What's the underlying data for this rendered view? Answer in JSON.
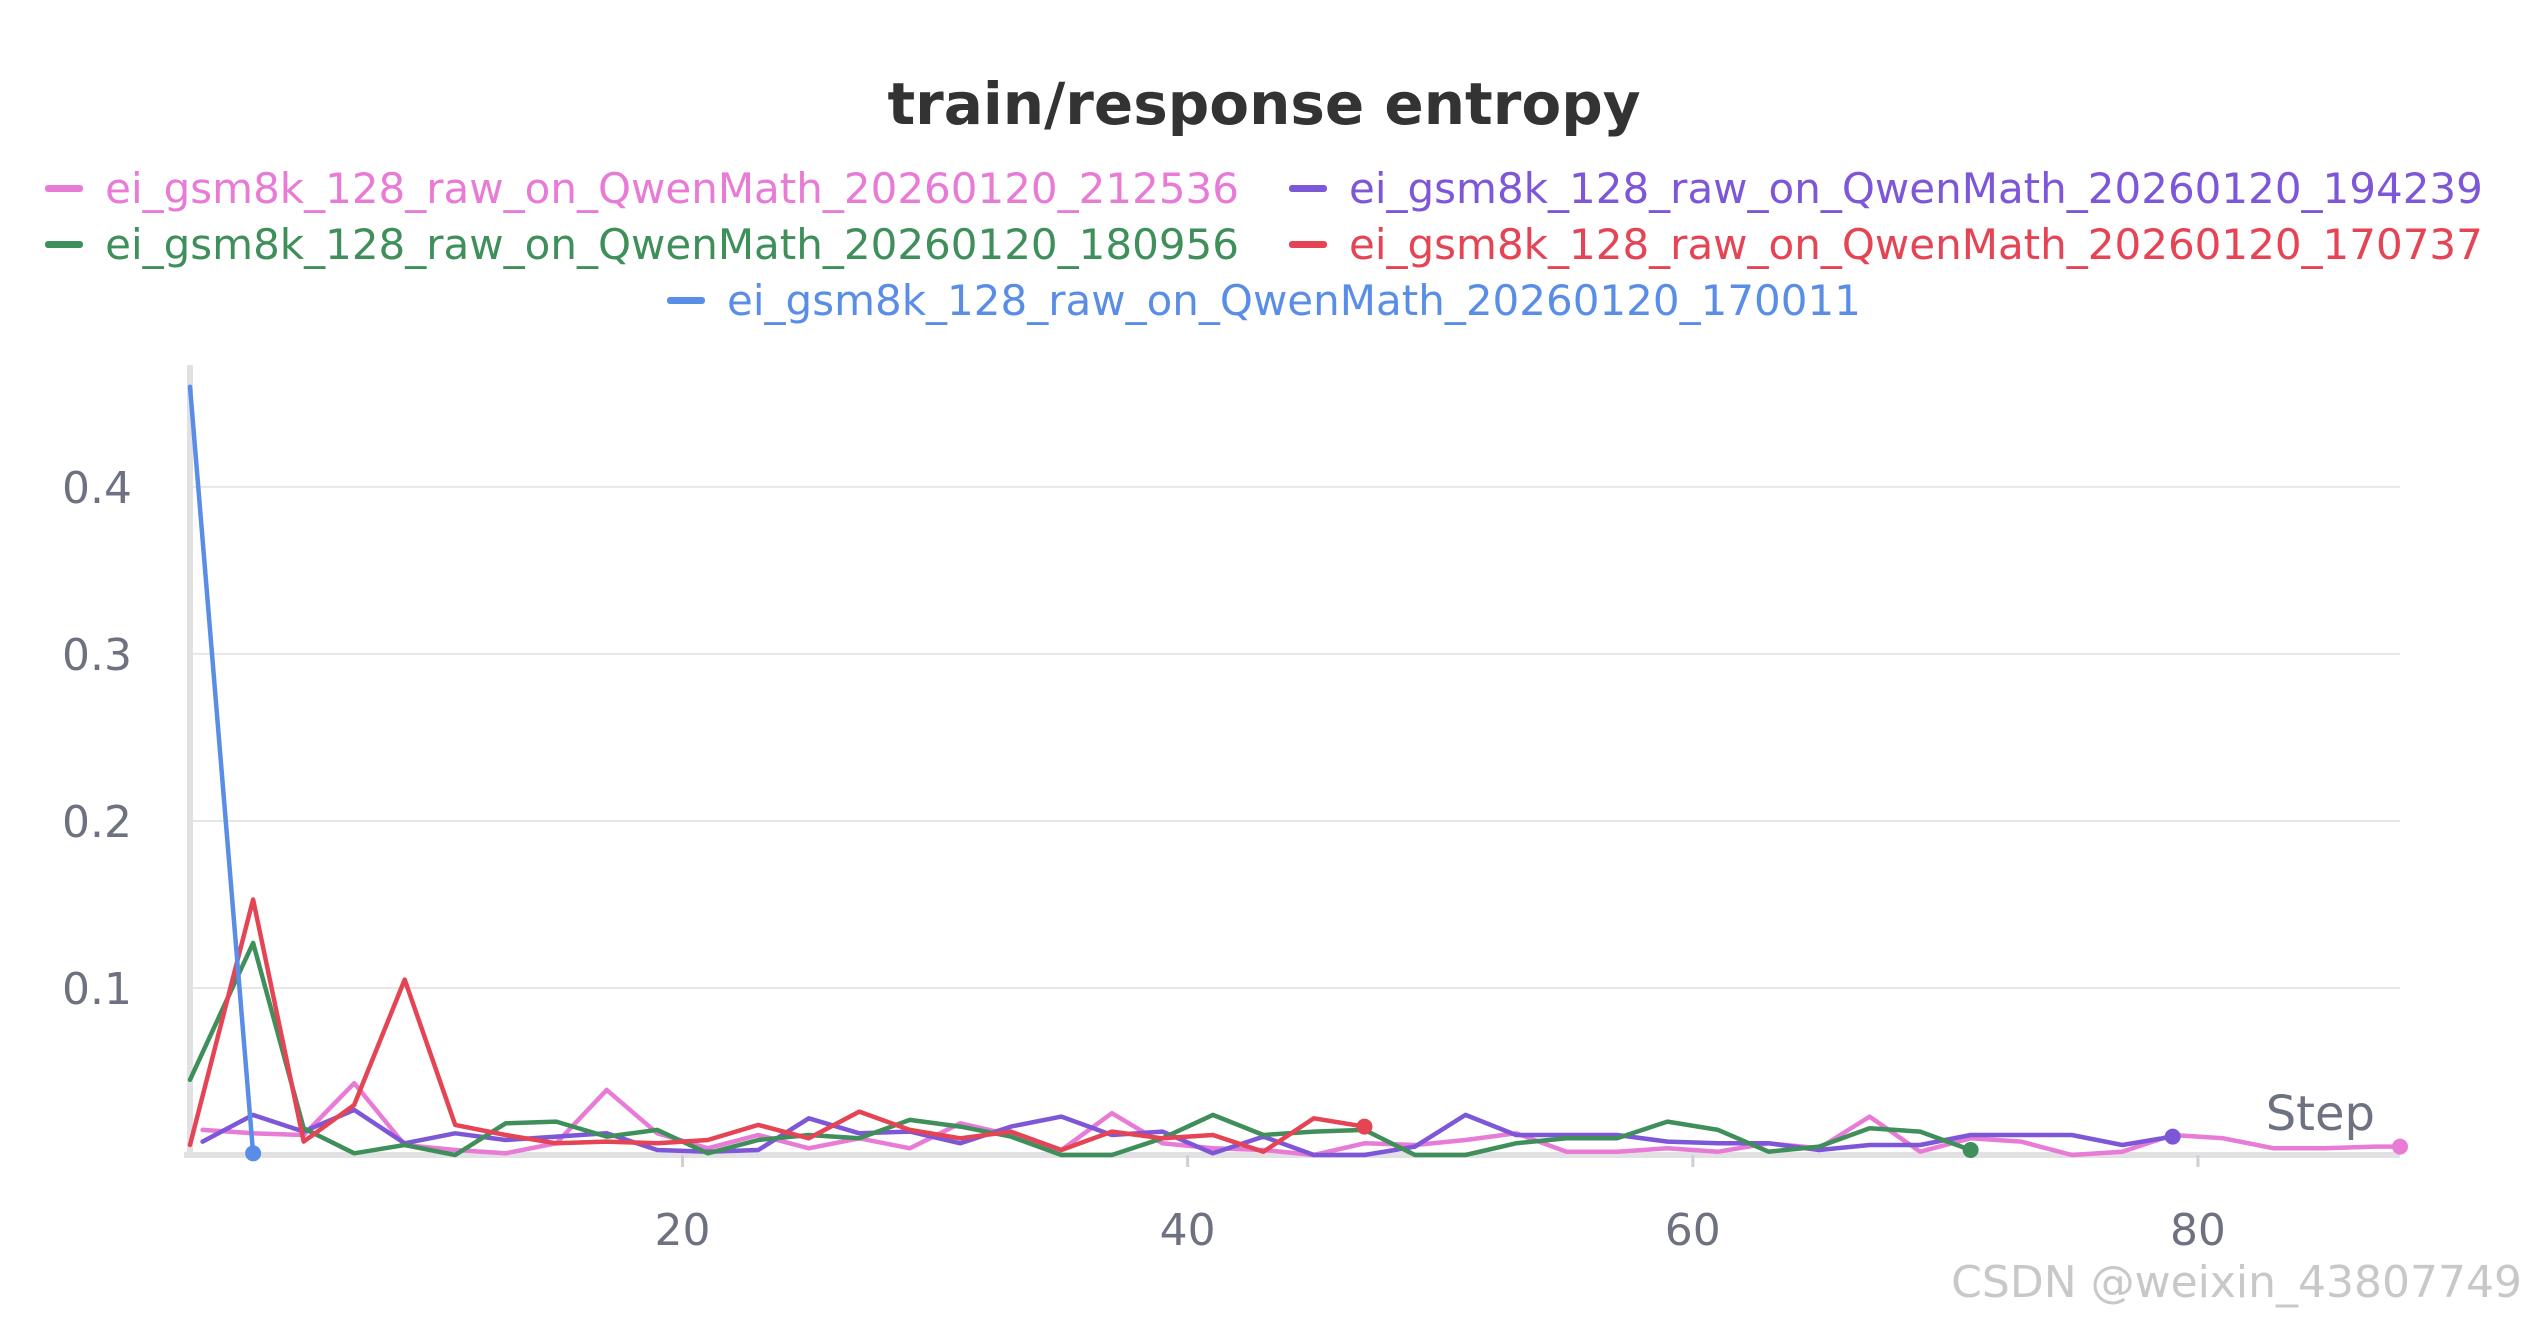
{
  "chart_data": {
    "type": "line",
    "title": "train/response entropy",
    "xlabel": "Step",
    "ylabel": "",
    "xlim": [
      0.5,
      88
    ],
    "ylim": [
      0,
      0.47
    ],
    "xticks": [
      20,
      40,
      60,
      80
    ],
    "yticks": [
      0.1,
      0.2,
      0.3,
      0.4
    ],
    "xtick_labels": [
      "20",
      "40",
      "60",
      "80"
    ],
    "ytick_labels": [
      "0.1",
      "0.2",
      "0.3",
      "0.4"
    ],
    "grid": true,
    "legend_position": "top",
    "series": [
      {
        "name": "ei_gsm8k_128_raw_on_QwenMath_20260120_212536",
        "color": "#E87BD6",
        "x": [
          1,
          3,
          5,
          7,
          9,
          11,
          13,
          15,
          17,
          19,
          21,
          23,
          25,
          27,
          29,
          31,
          33,
          35,
          37,
          39,
          41,
          43,
          45,
          47,
          49,
          51,
          53,
          55,
          57,
          59,
          61,
          63,
          65,
          67,
          69,
          71,
          73,
          75,
          77,
          79,
          81,
          83,
          85,
          87,
          88
        ],
        "y": [
          0.015,
          0.013,
          0.012,
          0.043,
          0.006,
          0.003,
          0.001,
          0.007,
          0.039,
          0.013,
          0.004,
          0.012,
          0.004,
          0.01,
          0.004,
          0.019,
          0.012,
          0.003,
          0.025,
          0.007,
          0.004,
          0.003,
          0.0,
          0.007,
          0.006,
          0.009,
          0.013,
          0.002,
          0.002,
          0.004,
          0.002,
          0.007,
          0.004,
          0.023,
          0.002,
          0.01,
          0.008,
          0.0,
          0.002,
          0.012,
          0.01,
          0.004,
          0.004,
          0.005,
          0.005
        ]
      },
      {
        "name": "ei_gsm8k_128_raw_on_QwenMath_20260120_194239",
        "color": "#7E57D8",
        "x": [
          1,
          3,
          5,
          7,
          9,
          11,
          13,
          15,
          17,
          19,
          21,
          23,
          25,
          27,
          29,
          31,
          33,
          35,
          37,
          39,
          41,
          43,
          45,
          47,
          49,
          51,
          53,
          55,
          57,
          59,
          61,
          63,
          65,
          67,
          69,
          71,
          73,
          75,
          77,
          79
        ],
        "y": [
          0.008,
          0.024,
          0.014,
          0.027,
          0.007,
          0.013,
          0.009,
          0.011,
          0.013,
          0.003,
          0.002,
          0.003,
          0.022,
          0.013,
          0.014,
          0.007,
          0.017,
          0.023,
          0.012,
          0.014,
          0.001,
          0.011,
          0.0,
          0.0,
          0.005,
          0.024,
          0.012,
          0.012,
          0.012,
          0.008,
          0.007,
          0.007,
          0.003,
          0.006,
          0.006,
          0.012,
          0.012,
          0.012,
          0.006,
          0.011
        ]
      },
      {
        "name": "ei_gsm8k_128_raw_on_QwenMath_20260120_180956",
        "color": "#3F8F5B",
        "x": [
          0.5,
          3,
          5,
          7,
          9,
          11,
          13,
          15,
          17,
          19,
          21,
          23,
          25,
          27,
          29,
          31,
          33,
          35,
          37,
          39,
          41,
          43,
          45,
          47,
          49,
          51,
          53,
          55,
          57,
          59,
          61,
          63,
          65,
          67,
          69,
          71
        ],
        "y": [
          0.045,
          0.127,
          0.016,
          0.001,
          0.006,
          0.0,
          0.019,
          0.02,
          0.011,
          0.015,
          0.001,
          0.009,
          0.012,
          0.01,
          0.021,
          0.017,
          0.011,
          0.0,
          0.0,
          0.01,
          0.024,
          0.012,
          0.014,
          0.015,
          0.0,
          0.0,
          0.007,
          0.01,
          0.01,
          0.02,
          0.015,
          0.002,
          0.005,
          0.016,
          0.014,
          0.003
        ]
      },
      {
        "name": "ei_gsm8k_128_raw_on_QwenMath_20260120_170737",
        "color": "#E54455",
        "x": [
          0.5,
          3,
          5,
          7,
          9,
          11,
          13,
          15,
          17,
          19,
          21,
          23,
          25,
          27,
          29,
          31,
          33,
          35,
          37,
          39,
          41,
          43,
          45,
          47
        ],
        "y": [
          0.006,
          0.153,
          0.008,
          0.03,
          0.105,
          0.018,
          0.012,
          0.007,
          0.008,
          0.007,
          0.009,
          0.018,
          0.01,
          0.026,
          0.015,
          0.01,
          0.014,
          0.003,
          0.014,
          0.01,
          0.012,
          0.002,
          0.022,
          0.017
        ]
      },
      {
        "name": "ei_gsm8k_128_raw_on_QwenMath_20260120_170011",
        "color": "#5A8EE6",
        "x": [
          0.5,
          3
        ],
        "y": [
          0.46,
          0.001
        ]
      }
    ]
  },
  "watermark": "CSDN @weixin_43807749"
}
